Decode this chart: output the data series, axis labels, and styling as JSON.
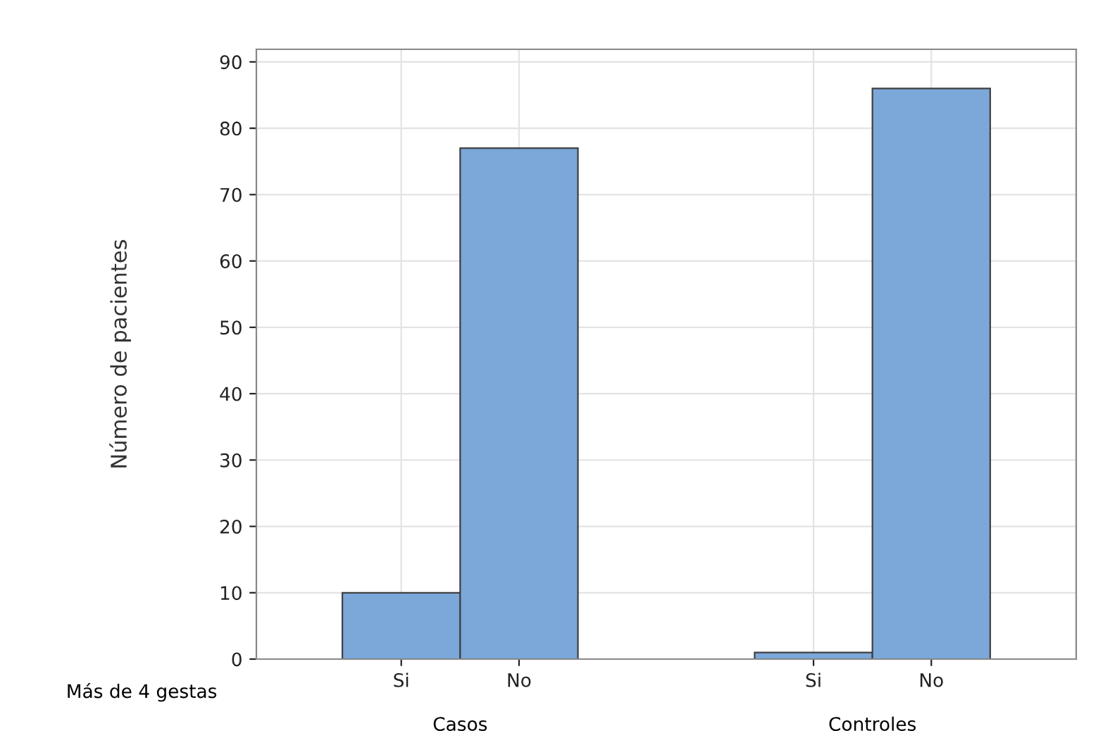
{
  "chart_data": {
    "type": "bar",
    "ylabel": "Número de pacientes",
    "categories": [
      "Si",
      "No",
      "Si",
      "No"
    ],
    "values": [
      10,
      77,
      1,
      86
    ],
    "color": "#7ba7d9",
    "ylim": [
      0,
      91.9
    ],
    "yticks": [
      0,
      10,
      20,
      30,
      40,
      50,
      60,
      70,
      80,
      90
    ],
    "grid": true,
    "annotations": [
      "Más de 4 gestas",
      "Casos",
      "Controles"
    ]
  }
}
